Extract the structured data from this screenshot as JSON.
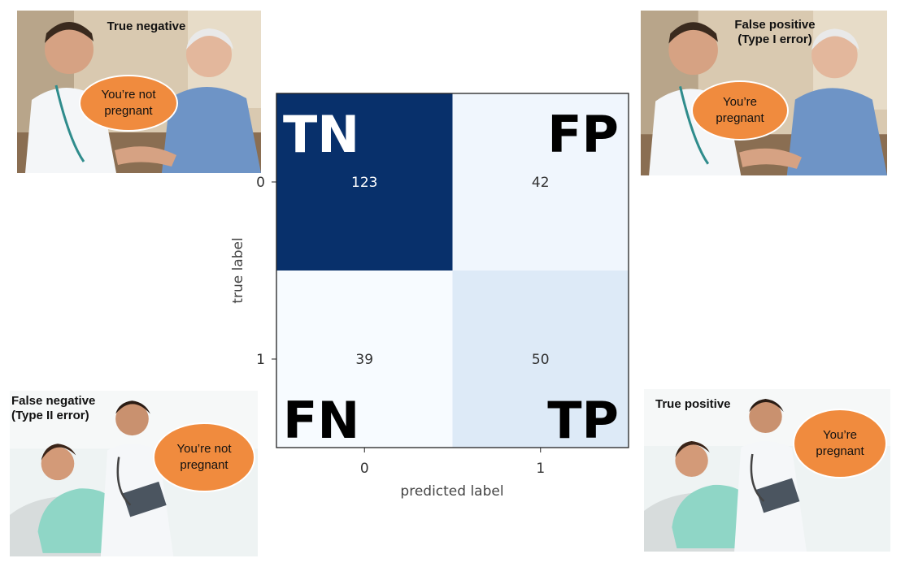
{
  "panels": {
    "true_negative": {
      "caption": "True negative",
      "speech": "You’re not\npregnant"
    },
    "false_positive": {
      "caption": "False positive\n(Type I error)",
      "speech": "You’re\npregnant"
    },
    "false_negative": {
      "caption": "False negative\n(Type II error)",
      "speech": "You’re not\npregnant"
    },
    "true_positive": {
      "caption": "True positive",
      "speech": "You’re\npregnant"
    }
  },
  "colors": {
    "cmap_low": "#f7fbff",
    "cmap_high": "#08306b",
    "bubble": "#f08b3e",
    "text_light": "#ffffff",
    "text_dark": "#333333"
  },
  "chart_data": {
    "type": "heatmap",
    "title": "",
    "xlabel": "predicted label",
    "ylabel": "true label",
    "x_ticks": [
      "0",
      "1"
    ],
    "y_ticks": [
      "0",
      "1"
    ],
    "matrix": [
      [
        123,
        42
      ],
      [
        39,
        50
      ]
    ],
    "cell_tags": [
      [
        "TN",
        "FP"
      ],
      [
        "FN",
        "TP"
      ]
    ],
    "colormap": "Blues",
    "grid": false
  }
}
